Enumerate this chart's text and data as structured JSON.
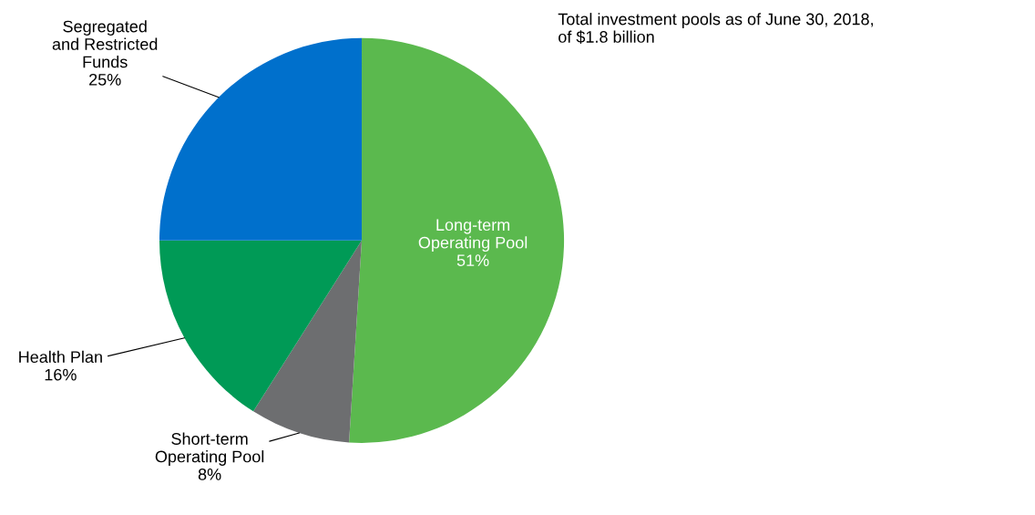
{
  "chart_data": {
    "type": "pie",
    "title": "Total investment pools as of June 30, 2018,\nof $1.8 billion",
    "categories": [
      "Long-term\nOperating Pool",
      "Short-term\nOperating Pool",
      "Health Plan",
      "Segregated\nand Restricted\nFunds"
    ],
    "values": [
      51,
      8,
      16,
      25
    ],
    "value_labels": [
      "51%",
      "8%",
      "16%",
      "25%"
    ],
    "colors": [
      "#5bb94e",
      "#6d6e70",
      "#009a56",
      "#0070cc"
    ],
    "legend": false
  }
}
